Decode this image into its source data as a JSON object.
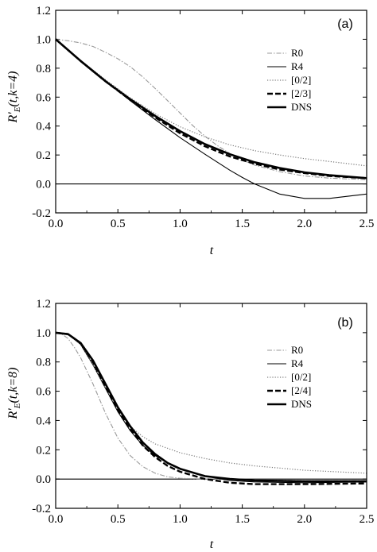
{
  "chart_data": [
    {
      "type": "line",
      "panel_label": "(a)",
      "xlabel": "t",
      "ylabel": "R'_E(t,k=4)",
      "ylabel_parts": {
        "main": "R'",
        "sub": "E",
        "args": "(t,k=4)"
      },
      "xlim": [
        0.0,
        2.5
      ],
      "ylim": [
        -0.2,
        1.2
      ],
      "xticks": [
        "0.0",
        "0.5",
        "1.0",
        "1.5",
        "2.0",
        "2.5"
      ],
      "yticks": [
        "-0.2",
        "0.0",
        "0.2",
        "0.4",
        "0.6",
        "0.8",
        "1.0",
        "1.2"
      ],
      "grid": false,
      "legend_position": "middle-right",
      "baseline_y": 0.0,
      "series": [
        {
          "name": "R0",
          "style": "gray-dashdot",
          "color": "#9a9a9a",
          "x": [
            0,
            0.1,
            0.2,
            0.3,
            0.4,
            0.5,
            0.6,
            0.7,
            0.8,
            0.9,
            1.0,
            1.1,
            1.2,
            1.3,
            1.4,
            1.5,
            1.6,
            1.8,
            2.0,
            2.2,
            2.5
          ],
          "values": [
            1.0,
            0.99,
            0.975,
            0.95,
            0.91,
            0.865,
            0.81,
            0.74,
            0.66,
            0.575,
            0.49,
            0.405,
            0.33,
            0.265,
            0.21,
            0.165,
            0.13,
            0.085,
            0.055,
            0.04,
            0.03
          ]
        },
        {
          "name": "R4",
          "style": "thin-solid",
          "color": "#000000",
          "x": [
            0,
            0.2,
            0.4,
            0.6,
            0.8,
            1.0,
            1.2,
            1.4,
            1.5,
            1.6,
            1.8,
            2.0,
            2.2,
            2.5
          ],
          "values": [
            1.0,
            0.855,
            0.715,
            0.575,
            0.445,
            0.32,
            0.205,
            0.095,
            0.045,
            0.0,
            -0.07,
            -0.1,
            -0.1,
            -0.07
          ]
        },
        {
          "name": "[0/2]",
          "style": "gray-dotted",
          "color": "#7a7a7a",
          "x": [
            0,
            0.2,
            0.4,
            0.6,
            0.8,
            1.0,
            1.2,
            1.4,
            1.6,
            1.8,
            2.0,
            2.2,
            2.5
          ],
          "values": [
            1.0,
            0.855,
            0.72,
            0.595,
            0.485,
            0.395,
            0.325,
            0.27,
            0.23,
            0.2,
            0.175,
            0.155,
            0.125
          ]
        },
        {
          "name": "[2/3]",
          "style": "thick-dashed",
          "color": "#000000",
          "x": [
            0,
            0.2,
            0.4,
            0.6,
            0.8,
            1.0,
            1.2,
            1.4,
            1.6,
            1.8,
            2.0,
            2.2,
            2.5
          ],
          "values": [
            1.0,
            0.85,
            0.71,
            0.58,
            0.46,
            0.35,
            0.26,
            0.19,
            0.14,
            0.1,
            0.075,
            0.055,
            0.04
          ]
        },
        {
          "name": "DNS",
          "style": "thick-solid",
          "color": "#000000",
          "x": [
            0,
            0.2,
            0.4,
            0.6,
            0.8,
            1.0,
            1.2,
            1.4,
            1.6,
            1.8,
            2.0,
            2.2,
            2.5
          ],
          "values": [
            1.0,
            0.85,
            0.71,
            0.585,
            0.47,
            0.365,
            0.275,
            0.205,
            0.15,
            0.11,
            0.08,
            0.06,
            0.04
          ]
        }
      ]
    },
    {
      "type": "line",
      "panel_label": "(b)",
      "xlabel": "t",
      "ylabel": "R'_E(t,k=8)",
      "ylabel_parts": {
        "main": "R'",
        "sub": "E",
        "args": "(t,k=8)"
      },
      "xlim": [
        0.0,
        2.5
      ],
      "ylim": [
        -0.2,
        1.2
      ],
      "xticks": [
        "0.0",
        "0.5",
        "1.0",
        "1.5",
        "2.0",
        "2.5"
      ],
      "yticks": [
        "-0.2",
        "0.0",
        "0.2",
        "0.4",
        "0.6",
        "0.8",
        "1.0",
        "1.2"
      ],
      "grid": false,
      "legend_position": "middle-right",
      "baseline_y": 0.0,
      "series": [
        {
          "name": "R0",
          "style": "gray-dashdot",
          "color": "#9a9a9a",
          "x": [
            0,
            0.05,
            0.1,
            0.15,
            0.2,
            0.3,
            0.4,
            0.5,
            0.6,
            0.7,
            0.8,
            0.9,
            1.0,
            1.2,
            1.5,
            2.0,
            2.5
          ],
          "values": [
            1.0,
            0.99,
            0.96,
            0.9,
            0.83,
            0.65,
            0.45,
            0.28,
            0.16,
            0.085,
            0.04,
            0.015,
            0.005,
            0.0,
            -0.005,
            -0.01,
            -0.01
          ]
        },
        {
          "name": "R4",
          "style": "thin-solid",
          "color": "#000000",
          "x": [
            0,
            0.1,
            0.2,
            0.3,
            0.4,
            0.5,
            0.6,
            0.7,
            0.8,
            0.9,
            1.0,
            1.2,
            1.4,
            1.6,
            2.0,
            2.5
          ],
          "values": [
            1.0,
            0.99,
            0.92,
            0.78,
            0.62,
            0.46,
            0.33,
            0.23,
            0.16,
            0.11,
            0.07,
            0.02,
            -0.01,
            -0.02,
            -0.025,
            -0.02
          ]
        },
        {
          "name": "[0/2]",
          "style": "gray-dotted",
          "color": "#7a7a7a",
          "x": [
            0,
            0.1,
            0.2,
            0.3,
            0.4,
            0.5,
            0.6,
            0.7,
            0.8,
            1.0,
            1.2,
            1.4,
            1.6,
            1.8,
            2.0,
            2.5
          ],
          "values": [
            1.0,
            0.99,
            0.92,
            0.78,
            0.62,
            0.47,
            0.36,
            0.29,
            0.24,
            0.18,
            0.14,
            0.11,
            0.09,
            0.075,
            0.06,
            0.04
          ]
        },
        {
          "name": "[2/4]",
          "style": "thick-dashed",
          "color": "#000000",
          "x": [
            0,
            0.1,
            0.2,
            0.3,
            0.4,
            0.5,
            0.6,
            0.7,
            0.8,
            0.9,
            1.0,
            1.2,
            1.4,
            1.6,
            2.0,
            2.5
          ],
          "values": [
            1.0,
            0.99,
            0.93,
            0.8,
            0.63,
            0.47,
            0.34,
            0.23,
            0.15,
            0.09,
            0.05,
            0.0,
            -0.025,
            -0.035,
            -0.035,
            -0.03
          ]
        },
        {
          "name": "DNS",
          "style": "thick-solid",
          "color": "#000000",
          "x": [
            0,
            0.1,
            0.2,
            0.3,
            0.4,
            0.5,
            0.6,
            0.7,
            0.8,
            0.9,
            1.0,
            1.2,
            1.4,
            1.6,
            2.0,
            2.5
          ],
          "values": [
            1.0,
            0.99,
            0.93,
            0.81,
            0.65,
            0.49,
            0.36,
            0.25,
            0.17,
            0.11,
            0.07,
            0.02,
            0.0,
            -0.01,
            -0.015,
            -0.015
          ]
        }
      ]
    }
  ]
}
